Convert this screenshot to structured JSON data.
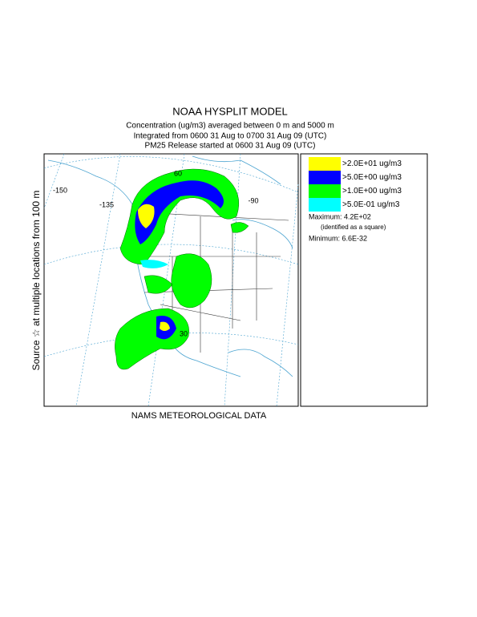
{
  "title": "NOAA HYSPLIT MODEL",
  "subtitle_lines": [
    "Concentration  (ug/m3) averaged between      0 m and  5000 m",
    "Integrated from 0600 31 Aug to 0700 31 Aug 09 (UTC)",
    "PM25 Release started at 0600 31 Aug 09 (UTC)"
  ],
  "side_label": "Source ☆   at multiple locations       from    100 m",
  "footer": "NAMS METEOROLOGICAL DATA",
  "legend": [
    {
      "label": ">2.0E+01 ug/m3",
      "color": "#ffff00"
    },
    {
      "label": ">5.0E+00 ug/m3",
      "color": "#0000ff"
    },
    {
      "label": ">1.0E+00 ug/m3",
      "color": "#00ff00"
    },
    {
      "label": ">5.0E-01 ug/m3",
      "color": "#00ffff"
    }
  ],
  "maximum": "Maximum: 4.2E+02",
  "maximum_note": "(identified as a square)",
  "minimum": "Minimum: 6.6E-32",
  "grid_labels": [
    "-150",
    "-135",
    "-90",
    "60",
    "30"
  ]
}
